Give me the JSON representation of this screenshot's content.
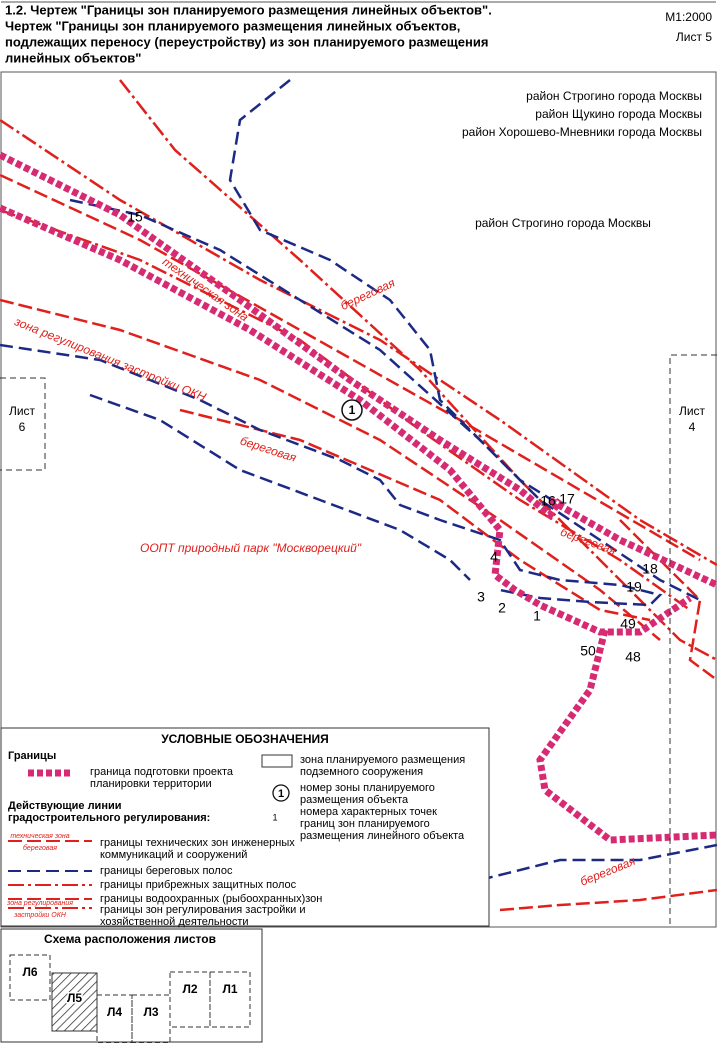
{
  "header": {
    "title": [
      "1.2. Чертеж \"Границы зон планируемого размещения линейных объектов\".",
      "Чертеж \"Границы зон планируемого размещения линейных объектов,",
      "подлежащих переносу (переустройству) из зон планируемого размещения",
      "линейных объектов\""
    ],
    "scale": "М1:2000",
    "sheet": "Лист 5"
  },
  "map": {
    "districts": [
      "район Строгино города Москвы",
      "район Щукино города Москвы",
      "район Хорошево-Мневники города Москвы"
    ],
    "district_center": "район Строгино города Москвы",
    "sheet_left": [
      "Лист",
      "6"
    ],
    "sheet_right": [
      "Лист",
      "4"
    ],
    "zone_number": "1",
    "labels": [
      "береговая",
      "техническая зона",
      "зона регулирования застройки ОКН",
      "береговая",
      "береговая",
      "береговая"
    ],
    "oopt": "ООПТ природный парк \"Москворецкий\"",
    "points": [
      "15",
      "16",
      "17",
      "4",
      "3",
      "2",
      "1",
      "18",
      "19",
      "49",
      "50",
      "48"
    ]
  },
  "legend": {
    "title": "УСЛОВНЫЕ ОБОЗНАЧЕНИЯ",
    "boundaries": "Границы",
    "boundary_item": [
      "граница подготовки проекта",
      "планировки территории"
    ],
    "regulation_heading": [
      "Действующие линии",
      "градостроительного регулирования:"
    ],
    "lines": [
      {
        "text": [
          "границы технических зон инженерных",
          "коммуникаций и сооружений"
        ],
        "tags": [
          "техническая зона",
          "береговая"
        ]
      },
      {
        "text": [
          "границы береговых полос"
        ]
      },
      {
        "text": [
          "границы прибрежных защитных полос"
        ]
      },
      {
        "text": [
          "границы водоохранных (рыбоохранных)зон"
        ]
      },
      {
        "text": [
          "границы зон регулирования застройки и",
          "хозяйственной деятельности"
        ],
        "tags": [
          "зона регулирования",
          "застройки ОКН"
        ]
      }
    ],
    "underground": [
      "зона планируемого размещения",
      "подземного сооружения"
    ],
    "zone_symbol": "1",
    "zone_text": [
      "номер зоны планируемого",
      "размещения объекта"
    ],
    "point_symbol": "1",
    "point_text": [
      "номера характерных точек",
      "границ зон планируемого",
      "размещения линейного объекта"
    ]
  },
  "scheme": {
    "title": "Схема расположения листов",
    "sheets": [
      "Л6",
      "Л5",
      "Л4",
      "Л3",
      "Л2",
      "Л1"
    ]
  }
}
